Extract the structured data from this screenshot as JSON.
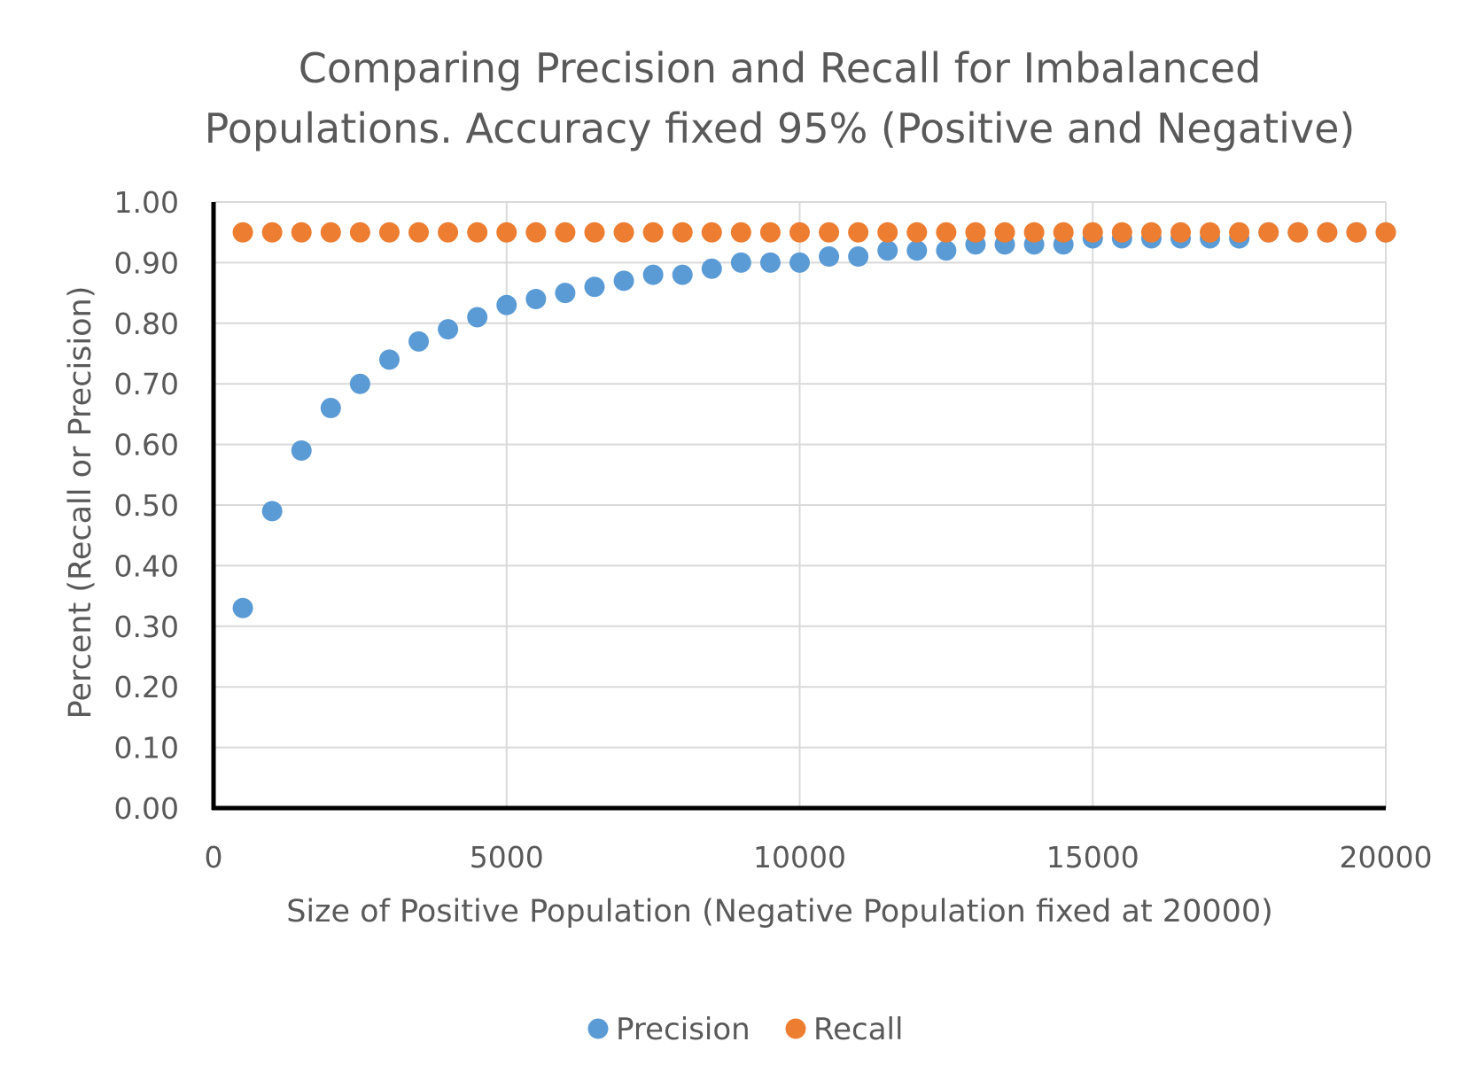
{
  "chart_data": {
    "type": "scatter",
    "title_lines": [
      "Comparing Precision and Recall for Imbalanced",
      "Populations.  Accuracy fixed 95% (Positive and Negative)"
    ],
    "xlabel": "Size of Positive Population (Negative Population fixed at 20000)",
    "ylabel": "Percent (Recall or Precision)",
    "xlim": [
      0,
      20000
    ],
    "ylim": [
      0,
      1
    ],
    "x_ticks": [
      "0",
      "5000",
      "10000",
      "15000",
      "20000"
    ],
    "y_ticks": [
      "0.00",
      "0.10",
      "0.20",
      "0.30",
      "0.40",
      "0.50",
      "0.60",
      "0.70",
      "0.80",
      "0.90",
      "1.00"
    ],
    "grid": true,
    "legend_position": "bottom",
    "x": [
      500,
      1000,
      1500,
      2000,
      2500,
      3000,
      3500,
      4000,
      4500,
      5000,
      5500,
      6000,
      6500,
      7000,
      7500,
      8000,
      8500,
      9000,
      9500,
      10000,
      10500,
      11000,
      11500,
      12000,
      12500,
      13000,
      13500,
      14000,
      14500,
      15000,
      15500,
      16000,
      16500,
      17000,
      17500,
      18000,
      18500,
      19000,
      19500,
      20000
    ],
    "series": [
      {
        "name": "Precision",
        "color": "#5b9bd5",
        "values": [
          0.33,
          0.49,
          0.59,
          0.66,
          0.7,
          0.74,
          0.77,
          0.79,
          0.81,
          0.83,
          0.84,
          0.85,
          0.86,
          0.87,
          0.88,
          0.88,
          0.89,
          0.9,
          0.9,
          0.9,
          0.91,
          0.91,
          0.92,
          0.92,
          0.92,
          0.93,
          0.93,
          0.93,
          0.93,
          0.94,
          0.94,
          0.94,
          0.94,
          0.94,
          0.94,
          0.95,
          0.95,
          0.95,
          0.95,
          0.95
        ]
      },
      {
        "name": "Recall",
        "color": "#ed7d31",
        "values": [
          0.95,
          0.95,
          0.95,
          0.95,
          0.95,
          0.95,
          0.95,
          0.95,
          0.95,
          0.95,
          0.95,
          0.95,
          0.95,
          0.95,
          0.95,
          0.95,
          0.95,
          0.95,
          0.95,
          0.95,
          0.95,
          0.95,
          0.95,
          0.95,
          0.95,
          0.95,
          0.95,
          0.95,
          0.95,
          0.95,
          0.95,
          0.95,
          0.95,
          0.95,
          0.95,
          0.95,
          0.95,
          0.95,
          0.95,
          0.95
        ]
      }
    ]
  }
}
